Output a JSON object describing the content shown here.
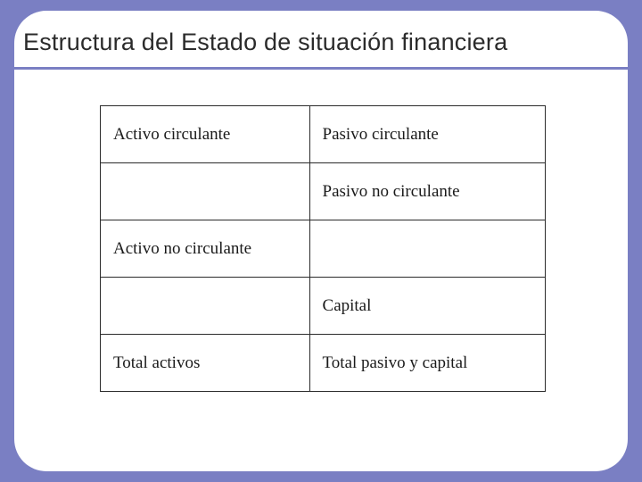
{
  "slide": {
    "title": "Estructura del Estado de situación financiera",
    "background_color": "#7a7fc3",
    "card_color": "#ffffff",
    "title_color": "#2b2b2b",
    "title_fontsize": 27,
    "rule_color": "#7a7fc3",
    "rule_height": 3
  },
  "table": {
    "type": "table",
    "border_color": "#2b2b2b",
    "cell_font": "Times New Roman",
    "cell_fontsize": 19,
    "column_widths_pct": [
      47,
      53
    ],
    "rows": [
      {
        "left": "Activo circulante",
        "right": "Pasivo circulante"
      },
      {
        "left": "",
        "right": "Pasivo no circulante"
      },
      {
        "left": "Activo no circulante",
        "right": ""
      },
      {
        "left": "",
        "right": "Capital"
      },
      {
        "left": "Total activos",
        "right": "Total pasivo y capital"
      }
    ]
  }
}
